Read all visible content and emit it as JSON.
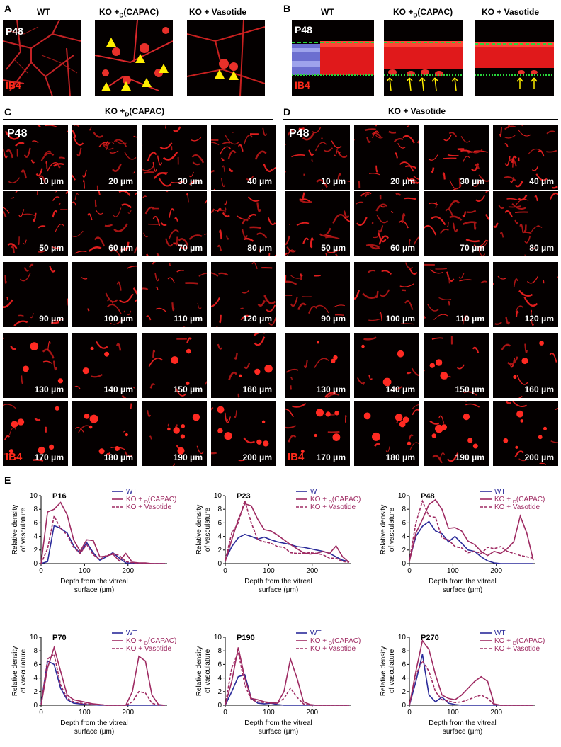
{
  "panel_letters": {
    "A": "A",
    "B": "B",
    "C": "C",
    "D": "D",
    "E": "E"
  },
  "panel_a": {
    "columns": [
      "WT",
      "KO +",
      "KO + Vasotide"
    ],
    "sub_d": "D",
    "capac": "(CAPAC)",
    "age": "P48",
    "stain": "IB4"
  },
  "panel_b": {
    "columns": [
      "WT",
      "KO +",
      "KO + Vasotide"
    ],
    "age": "P48",
    "stain": "IB4"
  },
  "panel_c": {
    "title_prefix": "KO +",
    "title_sub": "D",
    "title_suffix": "(CAPAC)",
    "age": "P48",
    "stain": "IB4",
    "depths": [
      "10 μm",
      "20 μm",
      "30 μm",
      "40 μm",
      "50 μm",
      "60 μm",
      "70 μm",
      "80 μm",
      "90 μm",
      "100 μm",
      "110 μm",
      "120 μm",
      "130 μm",
      "140 μm",
      "150 μm",
      "160 μm",
      "170 μm",
      "180 μm",
      "190 μm",
      "200 μm"
    ]
  },
  "panel_d": {
    "title": "KO + Vasotide",
    "age": "P48",
    "stain": "IB4",
    "depths": [
      "10 μm",
      "20 μm",
      "30 μm",
      "40 μm",
      "50 μm",
      "60 μm",
      "70 μm",
      "80 μm",
      "90 μm",
      "100 μm",
      "110 μm",
      "120 μm",
      "130 μm",
      "140 μm",
      "150 μm",
      "160 μm",
      "170 μm",
      "180 μm",
      "190 μm",
      "200 μm"
    ]
  },
  "colors": {
    "wt": "#2b2b9a",
    "capac": "#9e2a62",
    "vasotide": "#9e2a62"
  },
  "chart_data": [
    {
      "type": "line",
      "title": "P16",
      "ylabel": "Relative density of vasculature",
      "xlabel": "Depth from the vitreal surface (μm)",
      "xlim": [
        0,
        290
      ],
      "ylim": [
        0,
        10
      ],
      "xticks": [
        0,
        100,
        200
      ],
      "yticks": [
        0,
        2,
        4,
        6,
        8,
        10
      ],
      "legend": {
        "position": "top-right",
        "entries": [
          "WT",
          "KO + D(CAPAC)",
          "KO + Vasotide"
        ]
      },
      "series": [
        {
          "name": "WT",
          "style": "solid",
          "color": "#2b2b9a",
          "x": [
            0,
            15,
            30,
            45,
            60,
            75,
            90,
            105,
            120,
            135,
            150,
            165,
            180,
            195,
            210,
            225,
            240,
            255,
            270,
            285
          ],
          "y": [
            0,
            0.3,
            5.6,
            5.2,
            4.5,
            2.6,
            1.5,
            3.1,
            1.6,
            0.5,
            1.0,
            1.6,
            0.8,
            0.1,
            0.05,
            0,
            0,
            0,
            0,
            0
          ]
        },
        {
          "name": "KO + D(CAPAC)",
          "style": "solid",
          "color": "#9e2a62",
          "x": [
            0,
            15,
            30,
            45,
            60,
            75,
            90,
            105,
            120,
            135,
            150,
            165,
            180,
            195,
            210,
            225,
            240,
            255,
            270,
            285
          ],
          "y": [
            0,
            7.6,
            8.0,
            9.0,
            7.2,
            3.5,
            1.8,
            3.5,
            3.4,
            1.0,
            1.1,
            1.4,
            0.4,
            1.5,
            0.2,
            0.1,
            0.1,
            0,
            0,
            0
          ]
        },
        {
          "name": "KO + Vasotide",
          "style": "dashed",
          "color": "#9e2a62",
          "x": [
            0,
            15,
            30,
            45,
            60,
            75,
            90,
            105,
            120,
            135,
            150,
            165,
            180,
            195,
            210,
            225,
            240,
            255,
            270,
            285
          ],
          "y": [
            0,
            2.2,
            7.0,
            5.2,
            4.2,
            2.4,
            1.5,
            2.8,
            1.3,
            0.6,
            1.2,
            1.5,
            1.2,
            0.3,
            0.1,
            0,
            0,
            0,
            0,
            0
          ]
        }
      ]
    },
    {
      "type": "line",
      "title": "P23",
      "ylabel": "Relative density of vasculature",
      "xlabel": "Depth from the vitreal surface (μm)",
      "xlim": [
        0,
        290
      ],
      "ylim": [
        0,
        10
      ],
      "xticks": [
        0,
        100,
        200
      ],
      "yticks": [
        0,
        2,
        4,
        6,
        8,
        10
      ],
      "legend": {
        "position": "top-right",
        "entries": [
          "WT",
          "KO + D(CAPAC)",
          "KO + Vasotide"
        ]
      },
      "series": [
        {
          "name": "WT",
          "style": "solid",
          "color": "#2b2b9a",
          "x": [
            0,
            15,
            30,
            45,
            60,
            75,
            90,
            105,
            120,
            135,
            150,
            165,
            180,
            195,
            210,
            225,
            240,
            255,
            270,
            285
          ],
          "y": [
            0.5,
            2.5,
            3.8,
            4.3,
            4.0,
            3.6,
            3.9,
            3.5,
            3.2,
            3.0,
            2.8,
            2.5,
            2.4,
            2.2,
            2.0,
            1.8,
            1.5,
            1.0,
            0.5,
            0.3
          ]
        },
        {
          "name": "KO + D(CAPAC)",
          "style": "solid",
          "color": "#9e2a62",
          "x": [
            0,
            15,
            30,
            45,
            60,
            75,
            90,
            105,
            120,
            135,
            150,
            165,
            180,
            195,
            210,
            225,
            240,
            255,
            270,
            285
          ],
          "y": [
            0.3,
            3.5,
            6.5,
            8.8,
            8.5,
            6.5,
            5.0,
            4.8,
            4.2,
            3.5,
            2.8,
            2.2,
            1.6,
            1.4,
            1.5,
            1.8,
            1.5,
            2.6,
            1.0,
            0.2
          ]
        },
        {
          "name": "KO + Vasotide",
          "style": "dashed",
          "color": "#9e2a62",
          "x": [
            0,
            15,
            30,
            45,
            60,
            75,
            90,
            105,
            120,
            135,
            150,
            165,
            180,
            195,
            210,
            225,
            240,
            255,
            270,
            285
          ],
          "y": [
            0.5,
            4.5,
            6.0,
            9.3,
            6.0,
            3.5,
            3.2,
            3.0,
            2.5,
            2.4,
            1.6,
            1.5,
            1.5,
            1.6,
            1.5,
            1.3,
            0.8,
            0.8,
            0.3,
            0.2
          ]
        }
      ]
    },
    {
      "type": "line",
      "title": "P48",
      "ylabel": "Relative density of vasculature",
      "xlabel": "Depth from the vitreal surface (μm)",
      "xlim": [
        0,
        290
      ],
      "ylim": [
        0,
        10
      ],
      "xticks": [
        0,
        100,
        200
      ],
      "yticks": [
        0,
        2,
        4,
        6,
        8,
        10
      ],
      "legend": {
        "position": "top-right",
        "entries": [
          "WT",
          "KO + D(CAPAC)",
          "KO + Vasotide"
        ]
      },
      "series": [
        {
          "name": "WT",
          "style": "solid",
          "color": "#2b2b9a",
          "x": [
            0,
            15,
            30,
            45,
            60,
            75,
            90,
            105,
            120,
            135,
            150,
            165,
            180,
            195,
            210,
            225,
            240,
            255,
            270,
            285
          ],
          "y": [
            0.5,
            4.0,
            5.5,
            6.2,
            4.8,
            4.4,
            3.2,
            4.0,
            3.0,
            2.0,
            1.8,
            1.0,
            0.4,
            0.1,
            0,
            0,
            0,
            0,
            0,
            0
          ]
        },
        {
          "name": "KO + D(CAPAC)",
          "style": "solid",
          "color": "#9e2a62",
          "x": [
            0,
            15,
            30,
            45,
            60,
            75,
            90,
            105,
            120,
            135,
            150,
            165,
            180,
            195,
            210,
            225,
            240,
            255,
            270,
            285
          ],
          "y": [
            0.3,
            4.5,
            6.5,
            8.7,
            9.4,
            8.0,
            5.2,
            5.3,
            4.8,
            3.3,
            2.8,
            1.8,
            1.2,
            1.8,
            1.5,
            2.2,
            3.2,
            7.0,
            4.5,
            0.5
          ]
        },
        {
          "name": "KO + Vasotide",
          "style": "dashed",
          "color": "#9e2a62",
          "x": [
            0,
            15,
            30,
            45,
            60,
            75,
            90,
            105,
            120,
            135,
            150,
            165,
            180,
            195,
            210,
            225,
            240,
            255,
            270,
            285
          ],
          "y": [
            0.5,
            6.0,
            9.2,
            7.0,
            6.8,
            3.8,
            3.5,
            2.5,
            2.3,
            1.6,
            1.8,
            1.5,
            2.4,
            2.2,
            2.5,
            1.8,
            1.5,
            1.2,
            1.0,
            0.8
          ]
        }
      ]
    },
    {
      "type": "line",
      "title": "P70",
      "ylabel": "Relative density of vasculature",
      "xlabel": "Depth from the vitreal surface (μm)",
      "xlim": [
        0,
        290
      ],
      "ylim": [
        0,
        10
      ],
      "xticks": [
        0,
        100,
        200
      ],
      "yticks": [
        0,
        2,
        4,
        6,
        8,
        10
      ],
      "legend": {
        "position": "top-right",
        "entries": [
          "WT",
          "KO + D(CAPAC)",
          "KO + Vasotide"
        ]
      },
      "series": [
        {
          "name": "WT",
          "style": "solid",
          "color": "#2b2b9a",
          "x": [
            0,
            15,
            30,
            45,
            60,
            75,
            90,
            105,
            120,
            135,
            150,
            165,
            180,
            195,
            210,
            225,
            240,
            255,
            270,
            285
          ],
          "y": [
            0.2,
            6.5,
            6.0,
            2.5,
            0.8,
            0.3,
            0.2,
            0.1,
            0.05,
            0,
            0,
            0,
            0,
            0,
            0,
            0,
            0,
            0,
            0,
            0
          ]
        },
        {
          "name": "KO + D(CAPAC)",
          "style": "solid",
          "color": "#9e2a62",
          "x": [
            0,
            15,
            30,
            45,
            60,
            75,
            90,
            105,
            120,
            135,
            150,
            165,
            180,
            195,
            210,
            225,
            240,
            255,
            270,
            285
          ],
          "y": [
            0,
            5.5,
            8.5,
            5.0,
            1.5,
            0.8,
            0.6,
            0.4,
            0.2,
            0.1,
            0,
            0,
            0,
            0,
            2.0,
            7.2,
            6.5,
            1.5,
            0.1,
            0
          ]
        },
        {
          "name": "KO + Vasotide",
          "style": "dashed",
          "color": "#9e2a62",
          "x": [
            0,
            15,
            30,
            45,
            60,
            75,
            90,
            105,
            120,
            135,
            150,
            165,
            180,
            195,
            210,
            225,
            240,
            255,
            270,
            285
          ],
          "y": [
            0,
            6.8,
            7.5,
            3.0,
            1.0,
            0.5,
            0.3,
            0.2,
            0.1,
            0.1,
            0,
            0,
            0,
            0,
            0.5,
            2.0,
            1.8,
            0.3,
            0,
            0
          ]
        }
      ]
    },
    {
      "type": "line",
      "title": "P190",
      "ylabel": "Relative density of vasculature",
      "xlabel": "Depth from the vitreal surface (μm)",
      "xlim": [
        0,
        290
      ],
      "ylim": [
        0,
        10
      ],
      "xticks": [
        0,
        100,
        200
      ],
      "yticks": [
        0,
        2,
        4,
        6,
        8,
        10
      ],
      "legend": {
        "position": "top-right",
        "entries": [
          "WT",
          "KO + D(CAPAC)",
          "KO + Vasotide"
        ]
      },
      "series": [
        {
          "name": "WT",
          "style": "solid",
          "color": "#2b2b9a",
          "x": [
            0,
            15,
            30,
            45,
            60,
            75,
            90,
            105,
            120,
            135,
            150,
            165,
            180,
            195,
            210,
            225,
            240,
            255,
            270,
            285
          ],
          "y": [
            0,
            2.0,
            4.2,
            4.5,
            1.0,
            0.3,
            0.2,
            0.3,
            0.1,
            0,
            0,
            0,
            0,
            0,
            0,
            0,
            0,
            0,
            0,
            0
          ]
        },
        {
          "name": "KO + D(CAPAC)",
          "style": "solid",
          "color": "#9e2a62",
          "x": [
            0,
            15,
            30,
            45,
            60,
            75,
            90,
            105,
            120,
            135,
            150,
            165,
            180,
            195,
            210,
            225,
            240,
            255,
            270,
            285
          ],
          "y": [
            0,
            3.5,
            8.5,
            4.0,
            1.0,
            0.8,
            0.5,
            0.4,
            0.3,
            2.0,
            6.8,
            4.0,
            0.5,
            0.1,
            0,
            0,
            0,
            0,
            0,
            0
          ]
        },
        {
          "name": "KO + Vasotide",
          "style": "dashed",
          "color": "#9e2a62",
          "x": [
            0,
            15,
            30,
            45,
            60,
            75,
            90,
            105,
            120,
            135,
            150,
            165,
            180,
            195,
            210,
            225,
            240,
            255,
            270,
            285
          ],
          "y": [
            0,
            5.5,
            7.8,
            3.0,
            0.8,
            0.5,
            0.4,
            0.3,
            0.3,
            1.0,
            2.5,
            1.2,
            0.2,
            0,
            0,
            0,
            0,
            0,
            0,
            0
          ]
        }
      ]
    },
    {
      "type": "line",
      "title": "P270",
      "ylabel": "Relative density of vasculature",
      "xlabel": "Depth from the vitreal surface (μm)",
      "xlim": [
        0,
        290
      ],
      "ylim": [
        0,
        10
      ],
      "xticks": [
        0,
        100,
        200
      ],
      "yticks": [
        0,
        2,
        4,
        6,
        8,
        10
      ],
      "legend": {
        "position": "top-right",
        "entries": [
          "WT",
          "KO + D(CAPAC)",
          "KO + Vasotide"
        ]
      },
      "series": [
        {
          "name": "WT",
          "style": "solid",
          "color": "#2b2b9a",
          "x": [
            0,
            15,
            30,
            45,
            60,
            75,
            90,
            105,
            120,
            135,
            150,
            165,
            180,
            195,
            210,
            225,
            240,
            255,
            270,
            285
          ],
          "y": [
            0,
            3.5,
            7.5,
            1.5,
            0.5,
            1.2,
            0.3,
            0.1,
            0,
            0,
            0,
            0,
            0,
            0,
            0,
            0,
            0,
            0,
            0,
            0
          ]
        },
        {
          "name": "KO + D(CAPAC)",
          "style": "solid",
          "color": "#9e2a62",
          "x": [
            0,
            15,
            30,
            45,
            60,
            75,
            90,
            105,
            120,
            135,
            150,
            165,
            180,
            195,
            210,
            225,
            240,
            255,
            270,
            285
          ],
          "y": [
            0,
            5.0,
            9.5,
            8.2,
            4.5,
            1.5,
            1.0,
            0.8,
            1.5,
            2.5,
            3.5,
            4.2,
            3.5,
            0.2,
            0,
            0,
            0,
            0,
            0,
            0
          ]
        },
        {
          "name": "KO + Vasotide",
          "style": "dashed",
          "color": "#9e2a62",
          "x": [
            0,
            15,
            30,
            45,
            60,
            75,
            90,
            105,
            120,
            135,
            150,
            165,
            180,
            195,
            210,
            225,
            240,
            255,
            270,
            285
          ],
          "y": [
            0,
            4.5,
            6.5,
            5.0,
            2.0,
            0.8,
            0.6,
            0.4,
            0.5,
            0.8,
            1.2,
            1.5,
            1.0,
            0.1,
            0,
            0,
            0,
            0,
            0,
            0
          ]
        }
      ]
    }
  ]
}
